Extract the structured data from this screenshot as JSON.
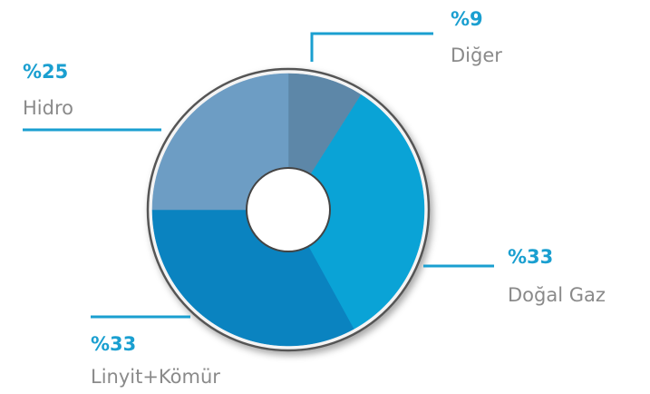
{
  "chart_data": {
    "type": "donut",
    "categories": [
      "Diğer",
      "Doğal Gaz",
      "Linyit+Kömür",
      "Hidro"
    ],
    "values": [
      9,
      33,
      33,
      25
    ],
    "value_labels": [
      "%9",
      "%33",
      "%33",
      "%25"
    ],
    "colors": [
      "#5d87a8",
      "#0aa3d6",
      "#0a83c0",
      "#6d9dc4"
    ]
  }
}
